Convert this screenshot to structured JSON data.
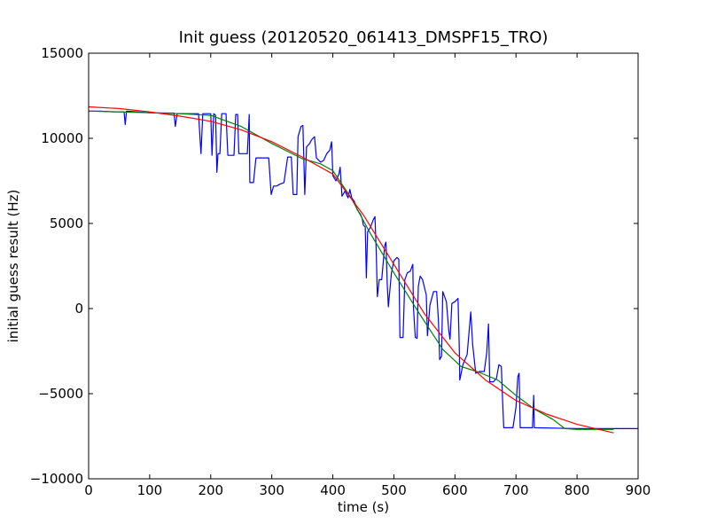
{
  "chart_data": {
    "type": "line",
    "title": "Init guess (20120520_061413_DMSPF15_TRO)",
    "xlabel": "time (s)",
    "ylabel": "initial guess result (Hz)",
    "xlim": [
      0,
      900
    ],
    "ylim": [
      -10000,
      15000
    ],
    "xticks": [
      0,
      100,
      200,
      300,
      400,
      500,
      600,
      700,
      800,
      900
    ],
    "yticks": [
      -10000,
      -5000,
      0,
      5000,
      10000,
      15000
    ],
    "grid": false,
    "legend": "none",
    "series": [
      {
        "color": "#0000ff",
        "points": [
          [
            0,
            11600
          ],
          [
            20,
            11600
          ],
          [
            40,
            11550
          ],
          [
            58,
            11550
          ],
          [
            60,
            10800
          ],
          [
            62,
            11600
          ],
          [
            80,
            11550
          ],
          [
            100,
            11500
          ],
          [
            140,
            11480
          ],
          [
            142,
            10700
          ],
          [
            145,
            11450
          ],
          [
            180,
            11450
          ],
          [
            184,
            9100
          ],
          [
            187,
            11450
          ],
          [
            200,
            11450
          ],
          [
            202,
            9000
          ],
          [
            205,
            11450
          ],
          [
            208,
            11350
          ],
          [
            210,
            8000
          ],
          [
            212,
            9100
          ],
          [
            215,
            9100
          ],
          [
            218,
            11450
          ],
          [
            225,
            11450
          ],
          [
            228,
            9000
          ],
          [
            238,
            9000
          ],
          [
            241,
            11400
          ],
          [
            244,
            11400
          ],
          [
            246,
            9100
          ],
          [
            260,
            9100
          ],
          [
            263,
            11400
          ],
          [
            264,
            7400
          ],
          [
            270,
            7400
          ],
          [
            274,
            8850
          ],
          [
            295,
            8850
          ],
          [
            299,
            6700
          ],
          [
            303,
            7200
          ],
          [
            308,
            7200
          ],
          [
            313,
            7300
          ],
          [
            320,
            7400
          ],
          [
            326,
            8900
          ],
          [
            332,
            8900
          ],
          [
            335,
            6700
          ],
          [
            341,
            6700
          ],
          [
            343,
            10100
          ],
          [
            348,
            10700
          ],
          [
            351,
            10750
          ],
          [
            354,
            6700
          ],
          [
            357,
            9500
          ],
          [
            362,
            9700
          ],
          [
            365,
            9900
          ],
          [
            370,
            10100
          ],
          [
            373,
            8850
          ],
          [
            380,
            8600
          ],
          [
            385,
            8700
          ],
          [
            390,
            9100
          ],
          [
            395,
            9300
          ],
          [
            398,
            9800
          ],
          [
            400,
            7800
          ],
          [
            405,
            7500
          ],
          [
            410,
            7900
          ],
          [
            412,
            8300
          ],
          [
            415,
            6600
          ],
          [
            420,
            6900
          ],
          [
            425,
            6500
          ],
          [
            428,
            7000
          ],
          [
            431,
            6500
          ],
          [
            435,
            6300
          ],
          [
            440,
            5800
          ],
          [
            445,
            5550
          ],
          [
            448,
            5300
          ],
          [
            450,
            4900
          ],
          [
            453,
            4800
          ],
          [
            455,
            1800
          ],
          [
            457,
            4500
          ],
          [
            462,
            4800
          ],
          [
            466,
            5200
          ],
          [
            469,
            5400
          ],
          [
            471,
            3400
          ],
          [
            473,
            700
          ],
          [
            476,
            1700
          ],
          [
            480,
            1700
          ],
          [
            485,
            3700
          ],
          [
            487,
            3900
          ],
          [
            489,
            1500
          ],
          [
            491,
            100
          ],
          [
            496,
            2100
          ],
          [
            500,
            2800
          ],
          [
            505,
            3000
          ],
          [
            508,
            2900
          ],
          [
            510,
            -1700
          ],
          [
            515,
            -1700
          ],
          [
            518,
            1700
          ],
          [
            522,
            2100
          ],
          [
            527,
            2200
          ],
          [
            531,
            2600
          ],
          [
            532,
            100
          ],
          [
            535,
            -1700
          ],
          [
            538,
            -1750
          ],
          [
            540,
            1300
          ],
          [
            543,
            1900
          ],
          [
            547,
            1700
          ],
          [
            553,
            800
          ],
          [
            555,
            -1600
          ],
          [
            559,
            200
          ],
          [
            565,
            1000
          ],
          [
            570,
            1000
          ],
          [
            573,
            -700
          ],
          [
            575,
            -3000
          ],
          [
            578,
            -2800
          ],
          [
            580,
            1000
          ],
          [
            586,
            400
          ],
          [
            590,
            -1300
          ],
          [
            592,
            -1800
          ],
          [
            595,
            300
          ],
          [
            600,
            400
          ],
          [
            605,
            600
          ],
          [
            607,
            -2200
          ],
          [
            608,
            -4200
          ],
          [
            613,
            -3300
          ],
          [
            620,
            -2700
          ],
          [
            626,
            -200
          ],
          [
            629,
            -2100
          ],
          [
            634,
            -3800
          ],
          [
            640,
            -3700
          ],
          [
            648,
            -3700
          ],
          [
            652,
            -2600
          ],
          [
            655,
            -900
          ],
          [
            657,
            -4300
          ],
          [
            663,
            -4300
          ],
          [
            668,
            -4100
          ],
          [
            672,
            -3300
          ],
          [
            676,
            -3400
          ],
          [
            678,
            -5400
          ],
          [
            680,
            -7000
          ],
          [
            695,
            -7000
          ],
          [
            700,
            -5800
          ],
          [
            703,
            -4000
          ],
          [
            705,
            -3800
          ],
          [
            707,
            -7000
          ],
          [
            727,
            -7000
          ],
          [
            729,
            -5100
          ],
          [
            730,
            -7000
          ],
          [
            800,
            -7050
          ],
          [
            900,
            -7050
          ]
        ]
      },
      {
        "color": "#008000",
        "points": [
          [
            0,
            11600
          ],
          [
            50,
            11550
          ],
          [
            100,
            11500
          ],
          [
            150,
            11450
          ],
          [
            200,
            11350
          ],
          [
            250,
            10700
          ],
          [
            300,
            9700
          ],
          [
            350,
            8800
          ],
          [
            380,
            8500
          ],
          [
            400,
            8100
          ],
          [
            430,
            6500
          ],
          [
            460,
            4500
          ],
          [
            500,
            2100
          ],
          [
            540,
            -200
          ],
          [
            580,
            -2400
          ],
          [
            610,
            -3400
          ],
          [
            640,
            -3750
          ],
          [
            670,
            -4200
          ],
          [
            700,
            -5100
          ],
          [
            730,
            -5900
          ],
          [
            760,
            -6500
          ],
          [
            780,
            -7050
          ],
          [
            800,
            -7100
          ],
          [
            860,
            -7100
          ]
        ]
      },
      {
        "color": "#ff0000",
        "points": [
          [
            0,
            11850
          ],
          [
            50,
            11750
          ],
          [
            100,
            11550
          ],
          [
            150,
            11300
          ],
          [
            200,
            11000
          ],
          [
            250,
            10500
          ],
          [
            300,
            9800
          ],
          [
            350,
            8900
          ],
          [
            400,
            7900
          ],
          [
            450,
            5500
          ],
          [
            500,
            2600
          ],
          [
            550,
            -300
          ],
          [
            600,
            -2600
          ],
          [
            650,
            -4200
          ],
          [
            700,
            -5400
          ],
          [
            750,
            -6200
          ],
          [
            800,
            -6800
          ],
          [
            860,
            -7300
          ]
        ]
      }
    ]
  }
}
